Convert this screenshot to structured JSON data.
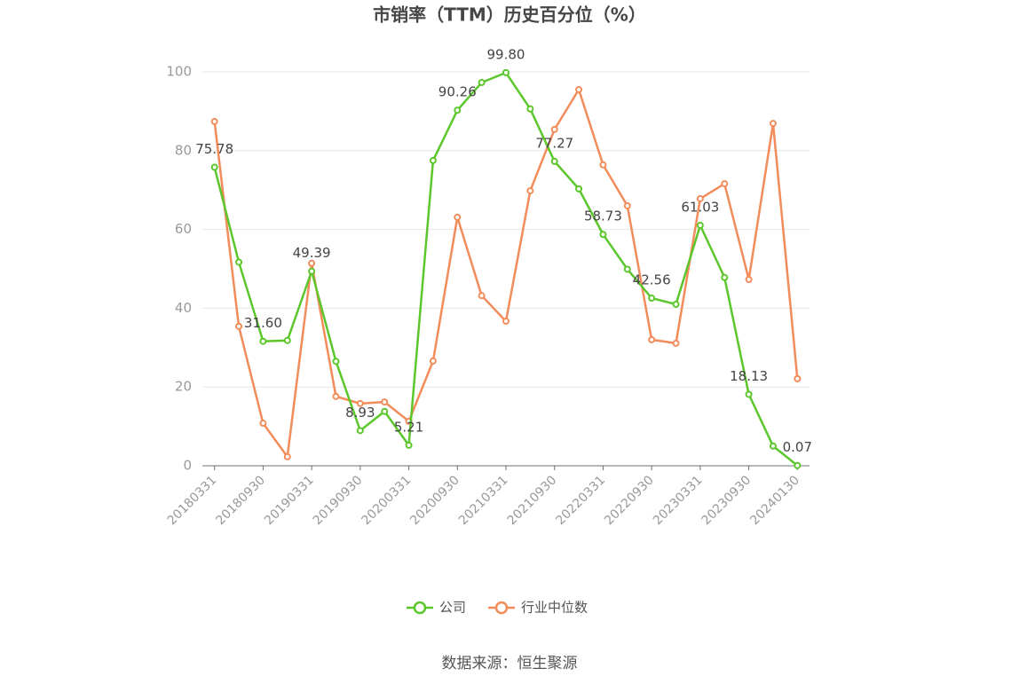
{
  "chart_data": {
    "type": "line",
    "title": "市销率（TTM）历史百分位（%）",
    "source": "数据来源：恒生聚源",
    "categories": [
      "20180331",
      null,
      "20180930",
      null,
      "20190331",
      null,
      "20190930",
      null,
      "20200331",
      null,
      "20200930",
      null,
      "20210331",
      null,
      "20210930",
      null,
      "20220331",
      null,
      "20220930",
      null,
      "20230331",
      null,
      "20230930",
      null,
      "20240130"
    ],
    "series": [
      {
        "name": "公司",
        "color": "#5cc72c",
        "values": [
          75.78,
          51.7,
          31.6,
          31.8,
          49.39,
          26.5,
          8.93,
          13.8,
          5.21,
          77.5,
          90.26,
          97.3,
          99.8,
          90.6,
          77.27,
          70.3,
          58.73,
          49.9,
          42.56,
          41.0,
          61.03,
          47.8,
          18.13,
          5.0,
          0.07
        ],
        "value_labels": [
          "75.78",
          null,
          "31.60",
          null,
          "49.39",
          null,
          "8.93",
          null,
          "5.21",
          null,
          "90.26",
          null,
          "99.80",
          null,
          "77.27",
          null,
          "58.73",
          null,
          "42.56",
          null,
          "61.03",
          null,
          "18.13",
          null,
          "0.07"
        ]
      },
      {
        "name": "行业中位数",
        "color": "#f28c5a",
        "values": [
          87.4,
          35.4,
          10.8,
          2.3,
          51.4,
          17.6,
          15.8,
          16.2,
          11.3,
          26.6,
          63.1,
          43.2,
          36.7,
          69.8,
          85.4,
          95.5,
          76.4,
          66.0,
          32.0,
          31.1,
          67.8,
          71.6,
          47.3,
          86.9,
          22.1
        ]
      }
    ],
    "ylim": [
      0,
      100
    ],
    "yticks": [
      0,
      20,
      40,
      60,
      80,
      100
    ],
    "grid": true,
    "legend_position": "bottom"
  }
}
